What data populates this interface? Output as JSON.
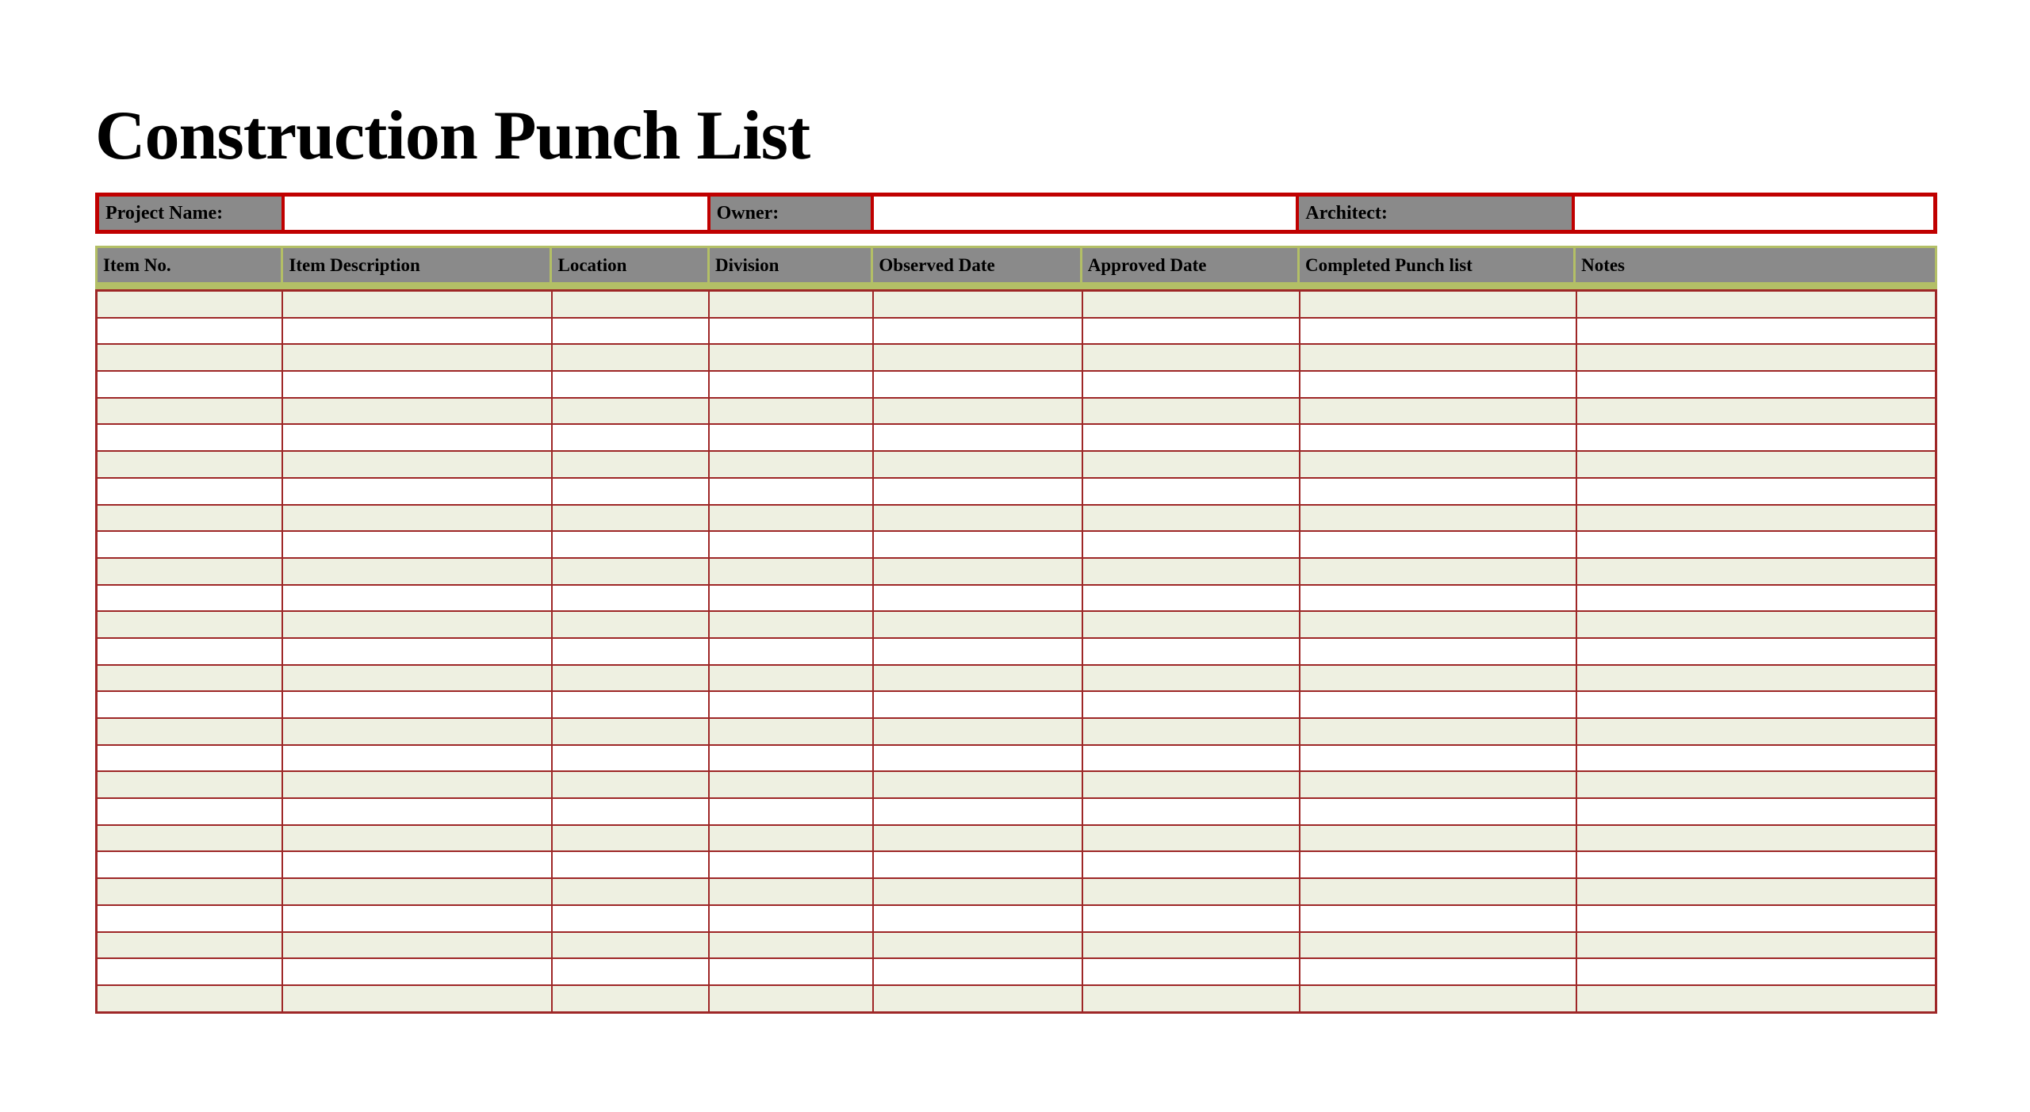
{
  "page": {
    "title": "Construction Punch List"
  },
  "info_bar": {
    "fields": [
      {
        "label": "Project Name:",
        "value": ""
      },
      {
        "label": "Owner:",
        "value": ""
      },
      {
        "label": "Architect:",
        "value": ""
      }
    ]
  },
  "table": {
    "columns": [
      "Item No.",
      "Item Description",
      "Location",
      "Division",
      "Observed Date",
      "Approved Date",
      "Completed Punch list",
      "Notes"
    ],
    "rows": [
      [
        "",
        "",
        "",
        "",
        "",
        "",
        "",
        ""
      ],
      [
        "",
        "",
        "",
        "",
        "",
        "",
        "",
        ""
      ],
      [
        "",
        "",
        "",
        "",
        "",
        "",
        "",
        ""
      ],
      [
        "",
        "",
        "",
        "",
        "",
        "",
        "",
        ""
      ],
      [
        "",
        "",
        "",
        "",
        "",
        "",
        "",
        ""
      ],
      [
        "",
        "",
        "",
        "",
        "",
        "",
        "",
        ""
      ],
      [
        "",
        "",
        "",
        "",
        "",
        "",
        "",
        ""
      ],
      [
        "",
        "",
        "",
        "",
        "",
        "",
        "",
        ""
      ],
      [
        "",
        "",
        "",
        "",
        "",
        "",
        "",
        ""
      ],
      [
        "",
        "",
        "",
        "",
        "",
        "",
        "",
        ""
      ],
      [
        "",
        "",
        "",
        "",
        "",
        "",
        "",
        ""
      ],
      [
        "",
        "",
        "",
        "",
        "",
        "",
        "",
        ""
      ],
      [
        "",
        "",
        "",
        "",
        "",
        "",
        "",
        ""
      ],
      [
        "",
        "",
        "",
        "",
        "",
        "",
        "",
        ""
      ],
      [
        "",
        "",
        "",
        "",
        "",
        "",
        "",
        ""
      ],
      [
        "",
        "",
        "",
        "",
        "",
        "",
        "",
        ""
      ],
      [
        "",
        "",
        "",
        "",
        "",
        "",
        "",
        ""
      ],
      [
        "",
        "",
        "",
        "",
        "",
        "",
        "",
        ""
      ],
      [
        "",
        "",
        "",
        "",
        "",
        "",
        "",
        ""
      ],
      [
        "",
        "",
        "",
        "",
        "",
        "",
        "",
        ""
      ],
      [
        "",
        "",
        "",
        "",
        "",
        "",
        "",
        ""
      ],
      [
        "",
        "",
        "",
        "",
        "",
        "",
        "",
        ""
      ],
      [
        "",
        "",
        "",
        "",
        "",
        "",
        "",
        ""
      ],
      [
        "",
        "",
        "",
        "",
        "",
        "",
        "",
        ""
      ],
      [
        "",
        "",
        "",
        "",
        "",
        "",
        "",
        ""
      ],
      [
        "",
        "",
        "",
        "",
        "",
        "",
        "",
        ""
      ],
      [
        "",
        "",
        "",
        "",
        "",
        "",
        "",
        ""
      ]
    ]
  },
  "colors": {
    "label_cell_gray": "#8a8a8a",
    "header_border_olive": "#b3bf66",
    "body_grid_red": "#9e2727",
    "info_bar_red": "#c00000",
    "row_cream": "#eef0e1",
    "row_white": "#ffffff",
    "text_black": "#000000"
  }
}
